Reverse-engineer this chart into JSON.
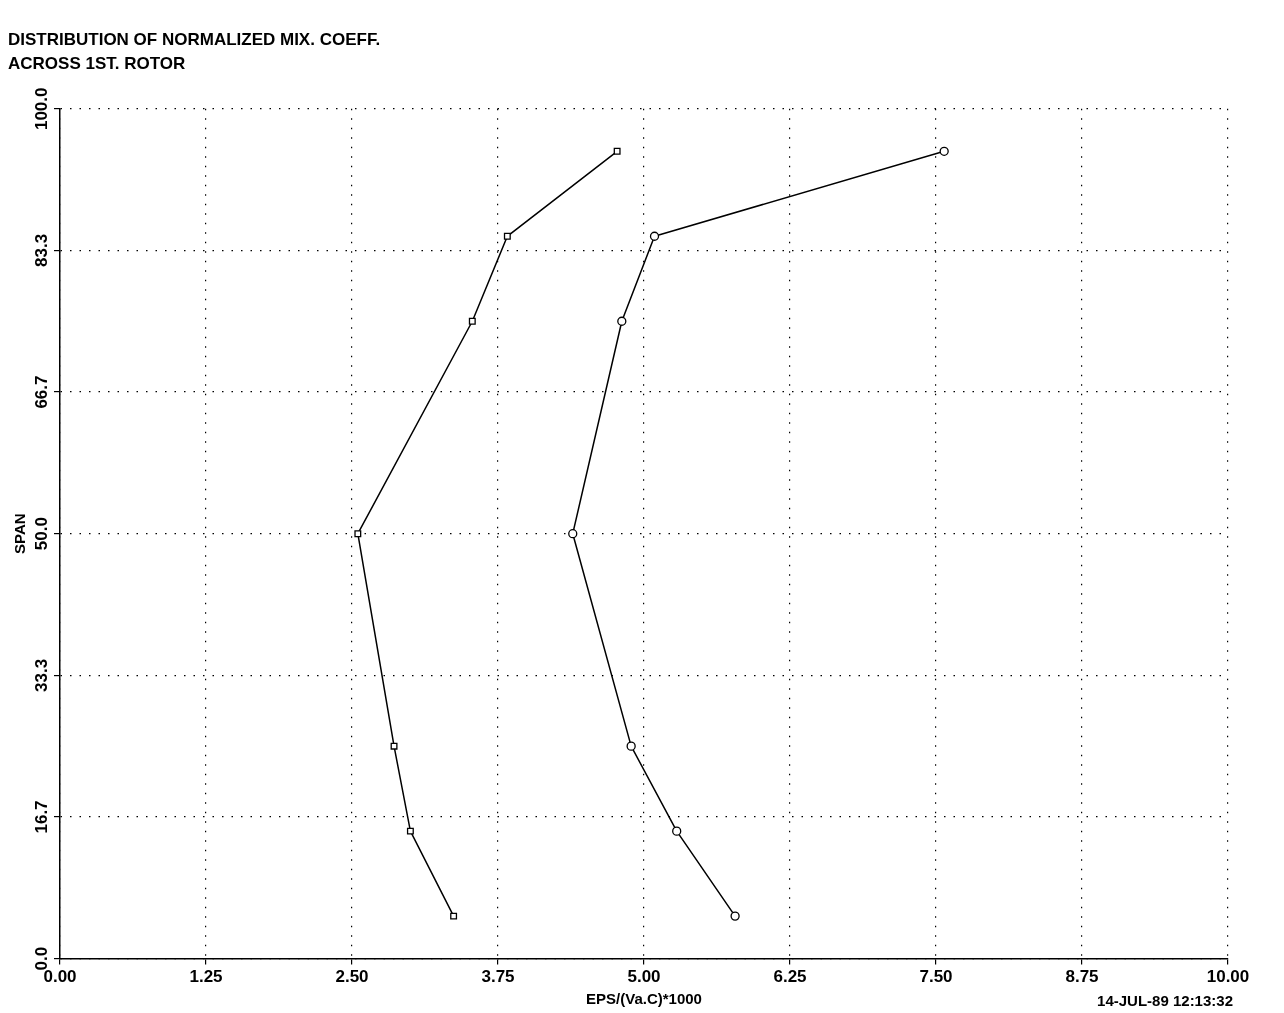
{
  "chart_data": {
    "type": "line",
    "title": "DISTRIBUTION OF NORMALIZED MIX. COEFF.",
    "subtitle": "ACROSS 1ST. ROTOR",
    "xlabel": "EPS/(Va.C)*1000",
    "ylabel": "SPAN",
    "annotations": [
      "14-JUL-89 12:13:32"
    ],
    "xlim": [
      0,
      10
    ],
    "xticks": [
      {
        "value": 0,
        "label": "0.00"
      },
      {
        "value": 1.25,
        "label": "1.25"
      },
      {
        "value": 2.5,
        "label": "2.50"
      },
      {
        "value": 3.75,
        "label": "3.75"
      },
      {
        "value": 5,
        "label": "5.00"
      },
      {
        "value": 6.25,
        "label": "6.25"
      },
      {
        "value": 7.5,
        "label": "7.50"
      },
      {
        "value": 8.75,
        "label": "8.75"
      },
      {
        "value": 10,
        "label": "10.00"
      }
    ],
    "ylim": [
      0,
      100
    ],
    "yticks": [
      {
        "value": 0,
        "label": "0.0"
      },
      {
        "value": 16.667,
        "label": "16.7"
      },
      {
        "value": 33.333,
        "label": "33.3"
      },
      {
        "value": 50,
        "label": "50.0"
      },
      {
        "value": 66.667,
        "label": "66.7"
      },
      {
        "value": 83.333,
        "label": "83.3"
      },
      {
        "value": 100,
        "label": "100.0"
      }
    ],
    "grid": true,
    "legend": false,
    "line_style": "solid",
    "series": [
      {
        "color": "#000000",
        "marker": "square",
        "x": [
          3.37,
          3.0,
          2.86,
          2.55,
          3.53,
          3.83,
          4.77
        ],
        "values": [
          5,
          15,
          25,
          50,
          75,
          85,
          95
        ]
      },
      {
        "color": "#000000",
        "marker": "circle",
        "x": [
          5.78,
          5.28,
          4.89,
          4.39,
          4.81,
          5.09,
          7.57
        ],
        "values": [
          5,
          15,
          25,
          50,
          75,
          85,
          95
        ]
      }
    ]
  }
}
